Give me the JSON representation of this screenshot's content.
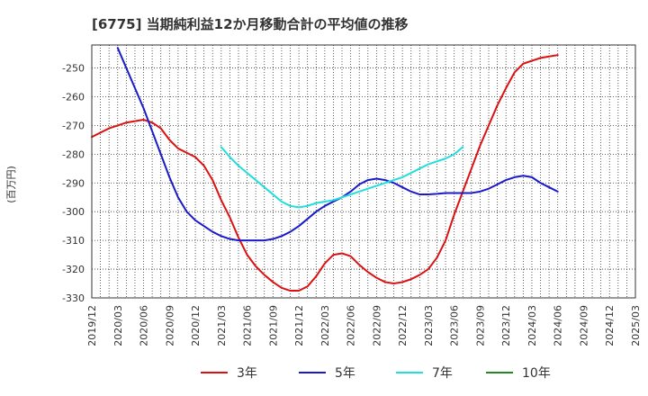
{
  "chart_data": {
    "type": "line",
    "title": "[6775]  当期純利益12か月移動合計の平均値の推移",
    "ylabel": "(百万円)",
    "xlabel": "",
    "ylim": [
      -330,
      -242
    ],
    "yticks": [
      -330,
      -320,
      -310,
      -300,
      -290,
      -280,
      -270,
      -260,
      -250
    ],
    "xlim": [
      "2019-12",
      "2025-03"
    ],
    "xticks": [
      "2019/12",
      "2020/03",
      "2020/06",
      "2020/09",
      "2020/12",
      "2021/03",
      "2021/06",
      "2021/09",
      "2021/12",
      "2022/03",
      "2022/06",
      "2022/09",
      "2022/12",
      "2023/03",
      "2023/06",
      "2023/09",
      "2023/12",
      "2024/03",
      "2024/06",
      "2024/09",
      "2024/12",
      "2025/03"
    ],
    "grid": true,
    "legend_position": "bottom",
    "series": [
      {
        "name": "3年",
        "color": "#dd1111",
        "points": [
          [
            "2019-12",
            -274
          ],
          [
            "2020-01",
            -272.5
          ],
          [
            "2020-02",
            -271
          ],
          [
            "2020-03",
            -270
          ],
          [
            "2020-04",
            -269
          ],
          [
            "2020-05",
            -268.5
          ],
          [
            "2020-06",
            -268
          ],
          [
            "2020-07",
            -269
          ],
          [
            "2020-08",
            -271
          ],
          [
            "2020-09",
            -275
          ],
          [
            "2020-10",
            -278
          ],
          [
            "2020-11",
            -279.5
          ],
          [
            "2020-12",
            -281
          ],
          [
            "2021-01",
            -284
          ],
          [
            "2021-02",
            -289
          ],
          [
            "2021-03",
            -296
          ],
          [
            "2021-04",
            -302
          ],
          [
            "2021-05",
            -309
          ],
          [
            "2021-06",
            -315
          ],
          [
            "2021-07",
            -319
          ],
          [
            "2021-08",
            -322
          ],
          [
            "2021-09",
            -324.5
          ],
          [
            "2021-10",
            -326.5
          ],
          [
            "2021-11",
            -327.5
          ],
          [
            "2021-12",
            -327.5
          ],
          [
            "2022-01",
            -326
          ],
          [
            "2022-02",
            -322.5
          ],
          [
            "2022-03",
            -318
          ],
          [
            "2022-04",
            -315
          ],
          [
            "2022-05",
            -314.5
          ],
          [
            "2022-06",
            -315.5
          ],
          [
            "2022-07",
            -318.5
          ],
          [
            "2022-08",
            -321
          ],
          [
            "2022-09",
            -323
          ],
          [
            "2022-10",
            -324.5
          ],
          [
            "2022-11",
            -325
          ],
          [
            "2022-12",
            -324.5
          ],
          [
            "2023-01",
            -323.5
          ],
          [
            "2023-02",
            -322
          ],
          [
            "2023-03",
            -320
          ],
          [
            "2023-04",
            -316
          ],
          [
            "2023-05",
            -310
          ],
          [
            "2023-06",
            -301
          ],
          [
            "2023-07",
            -293
          ],
          [
            "2023-08",
            -285
          ],
          [
            "2023-09",
            -277
          ],
          [
            "2023-10",
            -270
          ],
          [
            "2023-11",
            -263
          ],
          [
            "2023-12",
            -257
          ],
          [
            "2024-01",
            -251.5
          ],
          [
            "2024-02",
            -248.5
          ],
          [
            "2024-03",
            -247.5
          ],
          [
            "2024-04",
            -246.5
          ],
          [
            "2024-05",
            -246
          ],
          [
            "2024-06",
            -245.5
          ]
        ]
      },
      {
        "name": "5年",
        "color": "#1a1acc",
        "points": [
          [
            "2020-03",
            -243
          ],
          [
            "2020-04",
            -250
          ],
          [
            "2020-05",
            -257
          ],
          [
            "2020-06",
            -264
          ],
          [
            "2020-07",
            -272
          ],
          [
            "2020-08",
            -280
          ],
          [
            "2020-09",
            -288
          ],
          [
            "2020-10",
            -295
          ],
          [
            "2020-11",
            -300
          ],
          [
            "2020-12",
            -303
          ],
          [
            "2021-01",
            -305
          ],
          [
            "2021-02",
            -307
          ],
          [
            "2021-03",
            -308.5
          ],
          [
            "2021-04",
            -309.5
          ],
          [
            "2021-05",
            -310
          ],
          [
            "2021-06",
            -310
          ],
          [
            "2021-07",
            -310
          ],
          [
            "2021-08",
            -310
          ],
          [
            "2021-09",
            -309.5
          ],
          [
            "2021-10",
            -308.5
          ],
          [
            "2021-11",
            -307
          ],
          [
            "2021-12",
            -305
          ],
          [
            "2022-01",
            -302.5
          ],
          [
            "2022-02",
            -300
          ],
          [
            "2022-03",
            -298
          ],
          [
            "2022-04",
            -296.5
          ],
          [
            "2022-05",
            -295
          ],
          [
            "2022-06",
            -293
          ],
          [
            "2022-07",
            -290.5
          ],
          [
            "2022-08",
            -289
          ],
          [
            "2022-09",
            -288.5
          ],
          [
            "2022-10",
            -289
          ],
          [
            "2022-11",
            -290
          ],
          [
            "2022-12",
            -291.5
          ],
          [
            "2023-01",
            -293
          ],
          [
            "2023-02",
            -294
          ],
          [
            "2023-03",
            -294
          ],
          [
            "2023-04",
            -293.8
          ],
          [
            "2023-05",
            -293.5
          ],
          [
            "2023-06",
            -293.5
          ],
          [
            "2023-07",
            -293.5
          ],
          [
            "2023-08",
            -293.5
          ],
          [
            "2023-09",
            -293
          ],
          [
            "2023-10",
            -292
          ],
          [
            "2023-11",
            -290.5
          ],
          [
            "2023-12",
            -289
          ],
          [
            "2024-01",
            -288
          ],
          [
            "2024-02",
            -287.5
          ],
          [
            "2024-03",
            -288
          ],
          [
            "2024-04",
            -290
          ],
          [
            "2024-05",
            -291.5
          ],
          [
            "2024-06",
            -293
          ]
        ]
      },
      {
        "name": "7年",
        "color": "#22dddd",
        "points": [
          [
            "2021-03",
            -277.5
          ],
          [
            "2021-04",
            -281
          ],
          [
            "2021-05",
            -284
          ],
          [
            "2021-06",
            -286.5
          ],
          [
            "2021-07",
            -289
          ],
          [
            "2021-08",
            -291.5
          ],
          [
            "2021-09",
            -294
          ],
          [
            "2021-10",
            -296.5
          ],
          [
            "2021-11",
            -298
          ],
          [
            "2021-12",
            -298.5
          ],
          [
            "2022-01",
            -298
          ],
          [
            "2022-02",
            -297
          ],
          [
            "2022-03",
            -296.5
          ],
          [
            "2022-04",
            -296
          ],
          [
            "2022-05",
            -295
          ],
          [
            "2022-06",
            -294
          ],
          [
            "2022-07",
            -293
          ],
          [
            "2022-08",
            -292
          ],
          [
            "2022-09",
            -291
          ],
          [
            "2022-10",
            -290
          ],
          [
            "2022-11",
            -289
          ],
          [
            "2022-12",
            -288
          ],
          [
            "2023-01",
            -286.5
          ],
          [
            "2023-02",
            -285
          ],
          [
            "2023-03",
            -283.5
          ],
          [
            "2023-04",
            -282.5
          ],
          [
            "2023-05",
            -281.5
          ],
          [
            "2023-06",
            -280
          ],
          [
            "2023-07",
            -277.5
          ]
        ]
      },
      {
        "name": "10年",
        "color": "#228822",
        "points": []
      }
    ]
  }
}
